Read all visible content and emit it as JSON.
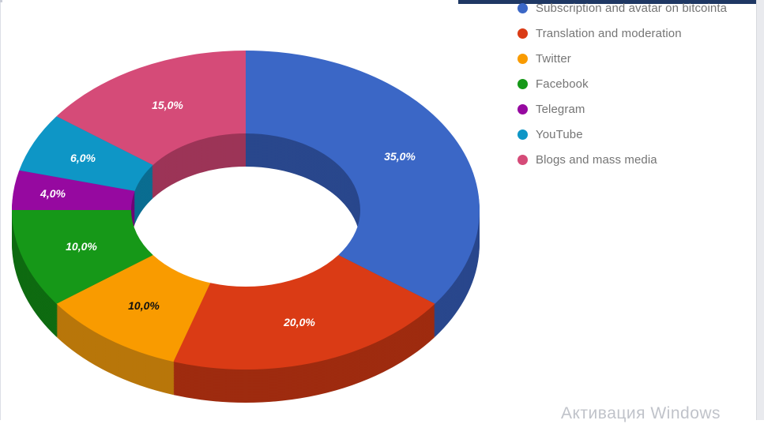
{
  "window": {
    "top_bar_color": "#1F3864",
    "watermark": "Активация Windows"
  },
  "chart_data": {
    "type": "pie",
    "variant": "3d-donut",
    "hole_ratio": 0.49,
    "legend_position": "right",
    "background": "#ffffff",
    "legend_text_color": "#757575",
    "categories": [
      "Subscription and avatar on bitcointa",
      "Translation and moderation",
      "Twitter",
      "Facebook",
      "Telegram",
      "YouTube",
      "Blogs and mass media"
    ],
    "values": [
      35,
      20,
      10,
      10,
      4,
      6,
      15
    ],
    "slice_labels": [
      "35,0%",
      "20,0%",
      "10,0%",
      "10,0%",
      "4,0%",
      "6,0%",
      "15,0%"
    ],
    "colors": [
      "#3B67C6",
      "#DA3B15",
      "#F99B00",
      "#169818",
      "#9609A0",
      "#0E96C6",
      "#D54B78"
    ],
    "side_colors": [
      "#29478C",
      "#9E2B0F",
      "#B8760A",
      "#0E6B11",
      "#6E0676",
      "#0A6D91",
      "#9C3457"
    ],
    "slice_label_colors": [
      "#FFFFFF",
      "#FFFFFF",
      "#111111",
      "#FFFFFF",
      "#FFFFFF",
      "#FFFFFF",
      "#FFFFFF"
    ]
  }
}
